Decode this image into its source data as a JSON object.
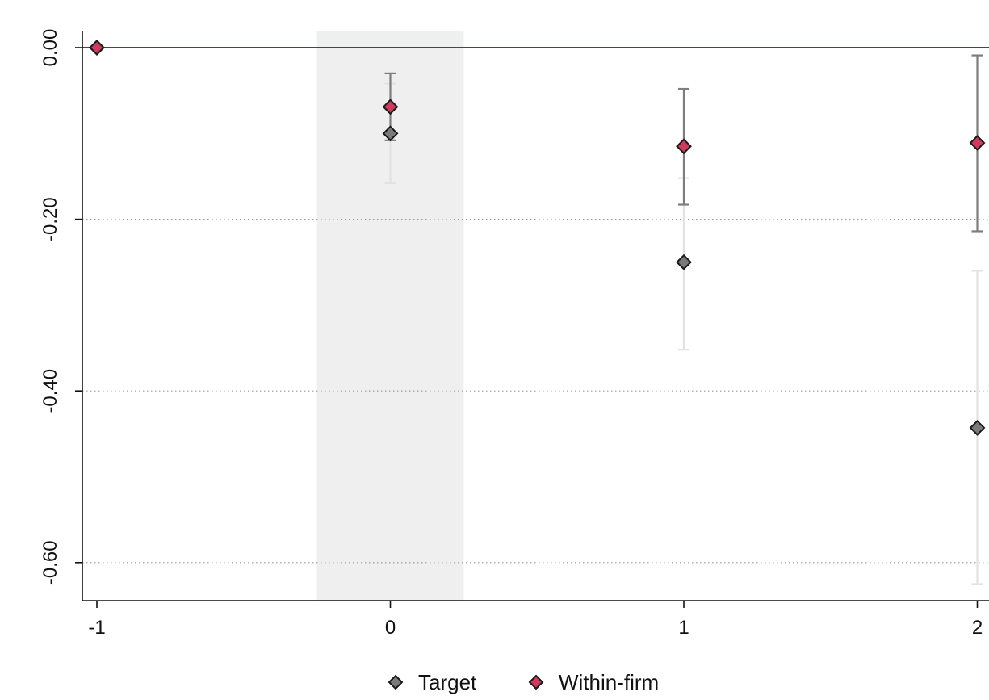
{
  "chart_data": {
    "type": "scatter",
    "title": "",
    "xlabel": "",
    "ylabel": "",
    "x_ticks": [
      "-1",
      "0",
      "1",
      "2"
    ],
    "y_ticks": [
      "0.00",
      "-0.20",
      "-0.40",
      "-0.60"
    ],
    "xlim": [
      -1.05,
      2.05
    ],
    "ylim": [
      -0.645,
      0.02
    ],
    "grid": "horizontal dotted",
    "reference_line_y": 0,
    "shaded_region_x": [
      -0.25,
      0.25
    ],
    "legend_position": "bottom",
    "series": [
      {
        "name": "Target",
        "x": [
          -1,
          0,
          1,
          2
        ],
        "y": [
          0,
          -0.1,
          -0.25,
          -0.443
        ],
        "ci_low": [
          0,
          -0.158,
          -0.352,
          -0.625
        ],
        "ci_high": [
          0,
          -0.042,
          -0.152,
          -0.26
        ],
        "marker": "diamond",
        "color": "#7a7a7a",
        "ci_color": "#e2e2e2"
      },
      {
        "name": "Within-firm",
        "x": [
          -1,
          0,
          1,
          2
        ],
        "y": [
          0,
          -0.069,
          -0.115,
          -0.111
        ],
        "ci_low": [
          0,
          -0.108,
          -0.183,
          -0.214
        ],
        "ci_high": [
          0,
          -0.03,
          -0.048,
          -0.009
        ],
        "marker": "diamond",
        "color": "#d03a5c",
        "ci_color": "#7d7d7d"
      }
    ],
    "colors": {
      "reference_line": "#b0123a",
      "shade": "#efefef",
      "axis": "#111111",
      "grid": "#9a9a9a"
    }
  }
}
